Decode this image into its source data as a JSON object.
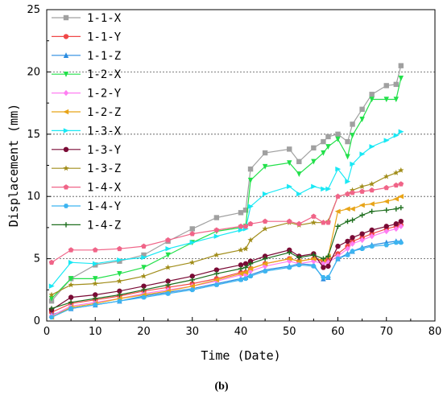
{
  "chart_data": {
    "type": "line",
    "xlabel": "Time (Date)",
    "ylabel": "Displacement (mm)",
    "xlim": [
      0,
      80
    ],
    "ylim": [
      0,
      25
    ],
    "xticks": [
      0,
      10,
      20,
      30,
      40,
      50,
      60,
      70,
      80
    ],
    "yticks": [
      0,
      5,
      10,
      15,
      20,
      25
    ],
    "grid": "dashed horizontal at 5, 10, 15, 20",
    "legend_position": "top-left",
    "caption": "(b)",
    "x": [
      1,
      5,
      10,
      15,
      20,
      25,
      30,
      35,
      40,
      41,
      42,
      45,
      50,
      52,
      55,
      57,
      58,
      60,
      62,
      63,
      65,
      67,
      70,
      72,
      73
    ],
    "series": [
      {
        "name": "1-1-X",
        "color": "#a0a0a0",
        "marker": "square",
        "values": [
          1.6,
          3.4,
          4.5,
          4.8,
          5.3,
          6.4,
          7.4,
          8.3,
          8.7,
          8.9,
          12.2,
          13.5,
          13.8,
          12.8,
          13.9,
          14.4,
          14.8,
          15.0,
          14.4,
          15.8,
          17.0,
          18.2,
          18.9,
          19.0,
          20.5
        ]
      },
      {
        "name": "1-1-Y",
        "color": "#f04848",
        "marker": "circle",
        "values": [
          0.7,
          1.4,
          1.7,
          2.0,
          2.4,
          2.7,
          3.0,
          3.4,
          3.9,
          3.9,
          4.2,
          4.6,
          5.0,
          4.8,
          5.0,
          4.8,
          4.9,
          5.4,
          6.0,
          6.4,
          6.7,
          7.0,
          7.4,
          7.6,
          7.7
        ]
      },
      {
        "name": "1-1-Z",
        "color": "#2a8ce0",
        "marker": "triangle-up",
        "values": [
          0.5,
          1.0,
          1.3,
          1.6,
          2.0,
          2.3,
          2.6,
          3.0,
          3.4,
          3.5,
          3.7,
          4.1,
          4.4,
          4.6,
          4.5,
          3.4,
          3.5,
          5.0,
          5.4,
          5.6,
          5.9,
          6.1,
          6.3,
          6.4,
          6.4
        ]
      },
      {
        "name": "1-2-X",
        "color": "#22e04a",
        "marker": "triangle-down",
        "values": [
          1.8,
          3.4,
          3.4,
          3.8,
          4.3,
          5.3,
          6.3,
          7.2,
          7.5,
          7.6,
          11.3,
          12.4,
          12.7,
          11.8,
          12.8,
          13.5,
          14.0,
          14.6,
          13.2,
          14.9,
          16.2,
          17.8,
          17.8,
          17.8,
          19.5
        ]
      },
      {
        "name": "1-2-Y",
        "color": "#ff7ef2",
        "marker": "diamond",
        "values": [
          0.4,
          1.2,
          1.5,
          1.8,
          2.2,
          2.5,
          2.8,
          3.2,
          3.7,
          3.7,
          4.0,
          4.4,
          4.8,
          4.6,
          4.8,
          4.6,
          4.7,
          5.2,
          5.8,
          6.2,
          6.5,
          6.8,
          7.2,
          7.4,
          7.6
        ]
      },
      {
        "name": "1-2-Z",
        "color": "#e8a418",
        "marker": "triangle-left",
        "values": [
          0.3,
          1.1,
          1.4,
          1.8,
          2.1,
          2.4,
          2.8,
          3.3,
          3.8,
          3.9,
          4.2,
          4.6,
          5.0,
          4.8,
          5.0,
          4.9,
          5.2,
          8.8,
          9.0,
          9.0,
          9.3,
          9.4,
          9.6,
          9.8,
          10.0
        ]
      },
      {
        "name": "1-3-X",
        "color": "#19e8f4",
        "marker": "triangle-right",
        "values": [
          2.8,
          4.7,
          4.6,
          4.9,
          5.1,
          5.8,
          6.3,
          6.8,
          7.3,
          7.4,
          9.2,
          10.2,
          10.8,
          10.2,
          10.8,
          10.6,
          10.6,
          12.2,
          11.2,
          12.6,
          13.4,
          14.0,
          14.5,
          14.9,
          15.2
        ]
      },
      {
        "name": "1-3-Y",
        "color": "#7a0a35",
        "marker": "circle",
        "values": [
          0.9,
          1.9,
          2.1,
          2.4,
          2.8,
          3.2,
          3.6,
          4.1,
          4.5,
          4.6,
          4.8,
          5.2,
          5.7,
          5.2,
          5.4,
          4.3,
          4.4,
          6.0,
          6.4,
          6.7,
          7.0,
          7.3,
          7.6,
          7.8,
          8.0
        ]
      },
      {
        "name": "1-3-Z",
        "color": "#a18d1a",
        "marker": "star",
        "values": [
          2.1,
          2.9,
          3.0,
          3.2,
          3.6,
          4.3,
          4.7,
          5.3,
          5.7,
          5.8,
          6.5,
          7.4,
          7.9,
          7.7,
          7.9,
          7.9,
          8.0,
          10.0,
          10.2,
          10.5,
          10.8,
          11.0,
          11.6,
          11.9,
          12.1
        ]
      },
      {
        "name": "1-4-X",
        "color": "#f06488",
        "marker": "pentagon",
        "values": [
          4.7,
          5.7,
          5.7,
          5.8,
          6.0,
          6.5,
          7.0,
          7.3,
          7.6,
          7.6,
          7.8,
          8.0,
          8.0,
          7.8,
          8.4,
          7.9,
          7.9,
          10.0,
          10.2,
          10.3,
          10.4,
          10.5,
          10.7,
          10.9,
          11.0
        ]
      },
      {
        "name": "1-4-Y",
        "color": "#3cb4f0",
        "marker": "hexagon",
        "values": [
          0.3,
          1.0,
          1.3,
          1.6,
          1.9,
          2.2,
          2.5,
          2.9,
          3.3,
          3.4,
          3.6,
          4.0,
          4.3,
          4.5,
          4.4,
          3.5,
          3.5,
          5.0,
          5.3,
          5.6,
          5.8,
          6.0,
          6.1,
          6.3,
          6.3
        ]
      },
      {
        "name": "1-4-Z",
        "color": "#1f6f1f",
        "marker": "plus",
        "values": [
          1.0,
          1.5,
          1.8,
          2.1,
          2.5,
          2.9,
          3.3,
          3.8,
          4.2,
          4.3,
          4.6,
          5.0,
          5.5,
          5.1,
          5.3,
          5.0,
          5.2,
          7.6,
          8.0,
          8.1,
          8.5,
          8.8,
          8.9,
          9.0,
          9.1
        ]
      }
    ]
  }
}
